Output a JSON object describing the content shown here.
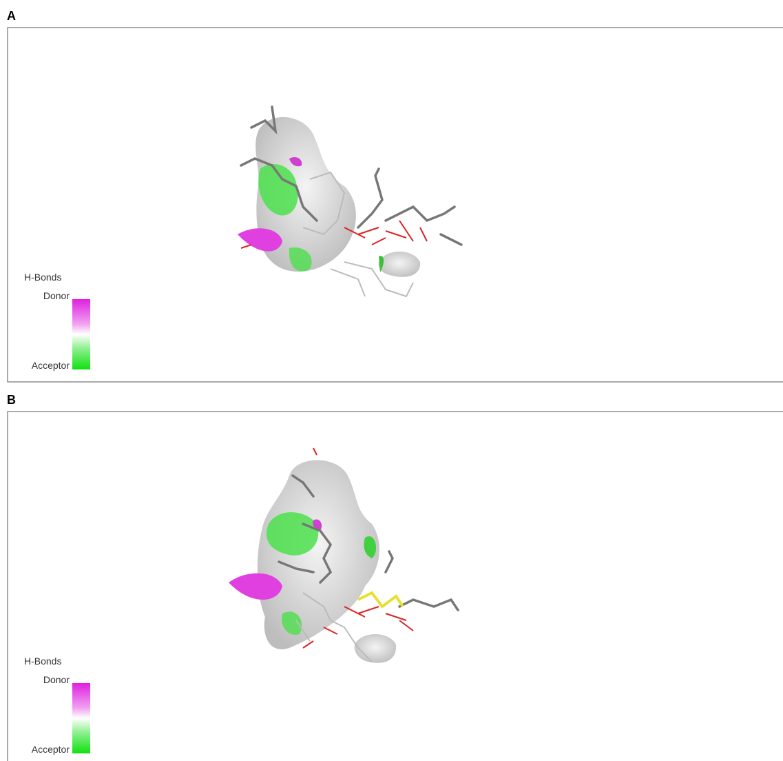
{
  "panels": [
    {
      "label": "A",
      "legend": {
        "title": "H-Bonds",
        "top": "Donor",
        "bottom": "Acceptor"
      }
    },
    {
      "label": "B",
      "legend": {
        "title": "H-Bonds",
        "top": "Donor",
        "bottom": "Acceptor"
      }
    }
  ]
}
